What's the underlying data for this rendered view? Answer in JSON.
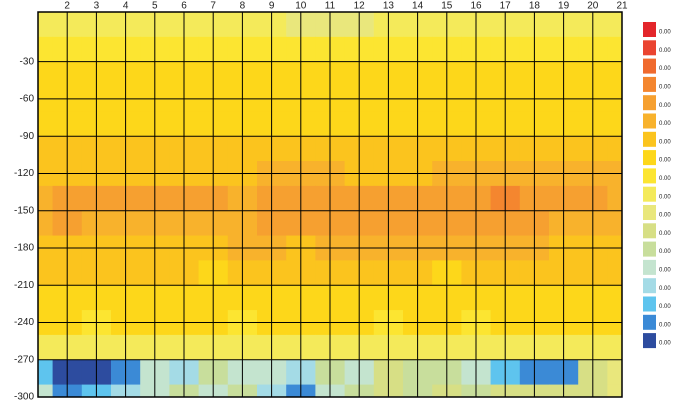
{
  "chart_data": {
    "type": "contour",
    "x": [
      1,
      2,
      3,
      4,
      5,
      6,
      7,
      8,
      9,
      10,
      11,
      12,
      13,
      14,
      15,
      16,
      17,
      18,
      19,
      20,
      21
    ],
    "y": [
      0,
      -20,
      -40,
      -60,
      -80,
      -100,
      -120,
      -140,
      -160,
      -180,
      -200,
      -220,
      -240,
      -260,
      -280,
      -300
    ],
    "xlim": [
      1,
      21
    ],
    "ylim": [
      10,
      -300
    ],
    "xticks": [
      2,
      3,
      4,
      5,
      6,
      7,
      8,
      9,
      10,
      11,
      12,
      13,
      14,
      15,
      16,
      17,
      18,
      19,
      20,
      21
    ],
    "yticks": [
      -30,
      -60,
      -90,
      -120,
      -150,
      -180,
      -210,
      -240,
      -270,
      -300
    ],
    "z": [
      [
        0.0021,
        0.0021,
        0.0021,
        0.0021,
        0.0021,
        0.0021,
        0.0021,
        0.0021,
        0.0021,
        0.0019,
        0.0018,
        0.0019,
        0.0021,
        0.0021,
        0.0021,
        0.0021,
        0.0021,
        0.0021,
        0.0021,
        0.0021,
        0.0021
      ],
      [
        0.0023,
        0.0023,
        0.0023,
        0.0024,
        0.0024,
        0.0024,
        0.0024,
        0.0024,
        0.0023,
        0.0023,
        0.0023,
        0.0023,
        0.0024,
        0.0024,
        0.0024,
        0.0023,
        0.0023,
        0.0023,
        0.0023,
        0.0023,
        0.0023
      ],
      [
        0.0025,
        0.0025,
        0.0025,
        0.0025,
        0.0025,
        0.0025,
        0.0025,
        0.0025,
        0.0025,
        0.0025,
        0.0025,
        0.0025,
        0.0025,
        0.0025,
        0.0025,
        0.0025,
        0.0025,
        0.0025,
        0.0025,
        0.0025,
        0.0025
      ],
      [
        0.0026,
        0.0026,
        0.0026,
        0.0026,
        0.0026,
        0.0026,
        0.0027,
        0.0026,
        0.0026,
        0.0026,
        0.0026,
        0.0026,
        0.0026,
        0.0026,
        0.0026,
        0.0026,
        0.0026,
        0.0027,
        0.0026,
        0.0026,
        0.0026
      ],
      [
        0.0027,
        0.0027,
        0.0027,
        0.0027,
        0.0027,
        0.0027,
        0.0027,
        0.0027,
        0.0027,
        0.0027,
        0.0027,
        0.0027,
        0.0027,
        0.0027,
        0.0027,
        0.0027,
        0.0027,
        0.0027,
        0.0027,
        0.0027,
        0.0027
      ],
      [
        0.0028,
        0.0028,
        0.0028,
        0.0028,
        0.0028,
        0.0028,
        0.0028,
        0.0028,
        0.0028,
        0.0028,
        0.0028,
        0.0028,
        0.0028,
        0.0028,
        0.0029,
        0.0029,
        0.0029,
        0.0029,
        0.0029,
        0.0028,
        0.0028
      ],
      [
        0.0029,
        0.0029,
        0.0029,
        0.0029,
        0.0029,
        0.0029,
        0.0029,
        0.0029,
        0.003,
        0.003,
        0.003,
        0.0029,
        0.0029,
        0.0029,
        0.003,
        0.003,
        0.003,
        0.003,
        0.003,
        0.003,
        0.003
      ],
      [
        0.0031,
        0.0033,
        0.0033,
        0.0033,
        0.0033,
        0.0033,
        0.0033,
        0.0031,
        0.0033,
        0.0033,
        0.0033,
        0.0033,
        0.0033,
        0.0033,
        0.0033,
        0.0034,
        0.0035,
        0.0034,
        0.0033,
        0.0033,
        0.0031
      ],
      [
        0.003,
        0.0033,
        0.0031,
        0.0031,
        0.0031,
        0.003,
        0.003,
        0.003,
        0.0033,
        0.0033,
        0.0033,
        0.0033,
        0.0033,
        0.0033,
        0.0033,
        0.0033,
        0.0033,
        0.0033,
        0.0031,
        0.0031,
        0.003
      ],
      [
        0.0029,
        0.0029,
        0.0029,
        0.0029,
        0.0029,
        0.0029,
        0.0029,
        0.003,
        0.003,
        0.0029,
        0.003,
        0.003,
        0.003,
        0.003,
        0.003,
        0.003,
        0.003,
        0.003,
        0.0029,
        0.0029,
        0.0029
      ],
      [
        0.0028,
        0.0028,
        0.0028,
        0.0028,
        0.0028,
        0.0028,
        0.0027,
        0.0028,
        0.0028,
        0.0028,
        0.0028,
        0.0028,
        0.0028,
        0.0028,
        0.0027,
        0.0028,
        0.0028,
        0.0028,
        0.0028,
        0.0028,
        0.0028
      ],
      [
        0.0027,
        0.0027,
        0.0027,
        0.0027,
        0.0026,
        0.0027,
        0.0027,
        0.0027,
        0.0027,
        0.0027,
        0.0027,
        0.0027,
        0.0026,
        0.0027,
        0.0026,
        0.0027,
        0.0026,
        0.0027,
        0.0027,
        0.0027,
        0.0027
      ],
      [
        0.0025,
        0.0025,
        0.0024,
        0.0025,
        0.0025,
        0.0025,
        0.0025,
        0.0024,
        0.0025,
        0.0025,
        0.0025,
        0.0025,
        0.0024,
        0.0025,
        0.0025,
        0.0024,
        0.0025,
        0.0025,
        0.0025,
        0.0025,
        0.0025
      ],
      [
        0.0022,
        0.0021,
        0.0022,
        0.0022,
        0.0022,
        0.0022,
        0.0022,
        0.0022,
        0.0022,
        0.0021,
        0.0022,
        0.0021,
        0.0022,
        0.0022,
        0.0022,
        0.0022,
        0.0022,
        0.0022,
        0.0021,
        0.0022,
        0.0022
      ],
      [
        0.0005,
        0.0002,
        0.0002,
        0.0003,
        0.001,
        0.0009,
        0.0013,
        0.0012,
        0.001,
        0.0009,
        0.0014,
        0.0012,
        0.0015,
        0.0013,
        0.0014,
        0.001,
        0.0006,
        0.0003,
        0.0004,
        0.0016,
        0.0018
      ],
      [
        0.001,
        0.0004,
        0.0006,
        0.0008,
        0.0012,
        0.0013,
        0.0012,
        0.0013,
        0.0009,
        0.0004,
        0.0011,
        0.0013,
        0.0016,
        0.0014,
        0.0016,
        0.0013,
        0.0015,
        0.0016,
        0.0016,
        0.0017,
        0.0018
      ]
    ],
    "levels": [
      {
        "value": 0.00425,
        "label": "0.00"
      },
      {
        "value": 0.004,
        "label": "0.00"
      },
      {
        "value": 0.00375,
        "label": "0.00"
      },
      {
        "value": 0.0035,
        "label": "0.00"
      },
      {
        "value": 0.00325,
        "label": "0.00"
      },
      {
        "value": 0.003,
        "label": "0.00"
      },
      {
        "value": 0.00275,
        "label": "0.00"
      },
      {
        "value": 0.0025,
        "label": "0.00"
      },
      {
        "value": 0.00225,
        "label": "0.00"
      },
      {
        "value": 0.002,
        "label": "0.00"
      },
      {
        "value": 0.00175,
        "label": "0.00"
      },
      {
        "value": 0.0015,
        "label": "0.00"
      },
      {
        "value": 0.00125,
        "label": "0.00"
      },
      {
        "value": 0.001,
        "label": "0.00"
      },
      {
        "value": 0.00075,
        "label": "0.00"
      },
      {
        "value": 0.0005,
        "label": "0.00"
      },
      {
        "value": 0.00025,
        "label": "0.00"
      },
      {
        "value": 0,
        "label": "0.00"
      }
    ],
    "colors": [
      "#e3262b",
      "#ea4430",
      "#f06a2e",
      "#f4862f",
      "#f6a030",
      "#f8b22c",
      "#fbc41e",
      "#fdd71a",
      "#fce531",
      "#f4ea5a",
      "#e9e77c",
      "#d7df85",
      "#c8de9c",
      "#c4e4cf",
      "#a4dbe6",
      "#5ec4ee",
      "#3b8ad6",
      "#2d4c9f"
    ],
    "grid": true
  }
}
